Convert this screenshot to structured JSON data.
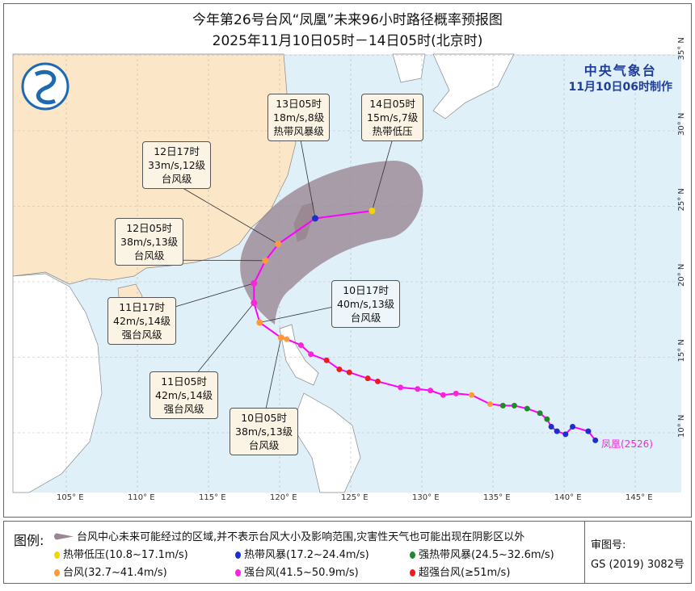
{
  "title": "今年第26号台风“凤凰”未来96小时路径概率预报图",
  "subtitle": "2025年11月10日05时－14日05时(北京时)",
  "agency": {
    "name": "中央气象台",
    "issued": "11月10日06时制作"
  },
  "typhoon_label": "凤凰(2526)",
  "axes": {
    "lon_labels": [
      "105° E",
      "110° E",
      "115° E",
      "120° E",
      "125° E",
      "130° E",
      "135° E",
      "140° E",
      "145° E"
    ],
    "lat_labels": [
      "35° N",
      "30° N",
      "25° N",
      "20° N",
      "15° N",
      "10° N"
    ]
  },
  "colors": {
    "land": "#fbe6c8",
    "sea": "#dff0f9",
    "cone": "#9a8794",
    "track": "#ff00ff",
    "td": "#f2d600",
    "ts": "#1a2fcf",
    "sts": "#1f8a2a",
    "ty": "#ff9a3c",
    "sty": "#ff22dd",
    "superty": "#ee1c1c",
    "river": "#3aa8e8"
  },
  "forecast_points": [
    {
      "time": "10日05时",
      "lon": 120.1,
      "lat": 16.3,
      "wind": "38m/s,13级",
      "level": "台风级",
      "cat": "ty"
    },
    {
      "time": "10日17时",
      "lon": 118.6,
      "lat": 17.3,
      "wind": "40m/s,13级",
      "level": "台风级",
      "cat": "ty"
    },
    {
      "time": "11日05时",
      "lon": 118.2,
      "lat": 18.6,
      "wind": "42m/s,14级",
      "level": "强台风级",
      "cat": "sty"
    },
    {
      "time": "11日17时",
      "lon": 118.2,
      "lat": 19.9,
      "wind": "42m/s,14级",
      "level": "强台风级",
      "cat": "sty"
    },
    {
      "time": "12日05时",
      "lon": 119.0,
      "lat": 21.4,
      "wind": "38m/s,13级",
      "level": "台风级",
      "cat": "ty"
    },
    {
      "time": "12日17时",
      "lon": 119.9,
      "lat": 22.5,
      "wind": "33m/s,12级",
      "level": "台风级",
      "cat": "ty"
    },
    {
      "time": "13日05时",
      "lon": 122.5,
      "lat": 24.2,
      "wind": "18m/s,8级",
      "level": "热带风暴级",
      "cat": "ts"
    },
    {
      "time": "14日05时",
      "lon": 126.5,
      "lat": 24.7,
      "wind": "15m/s,7级",
      "level": "热带低压",
      "cat": "td"
    }
  ],
  "past_track": [
    {
      "lon": 142.2,
      "lat": 9.5,
      "cat": "ts"
    },
    {
      "lon": 141.7,
      "lat": 10.1,
      "cat": "ts"
    },
    {
      "lon": 140.6,
      "lat": 10.4,
      "cat": "ts"
    },
    {
      "lon": 140.1,
      "lat": 9.9,
      "cat": "ts"
    },
    {
      "lon": 139.5,
      "lat": 10.1,
      "cat": "ts"
    },
    {
      "lon": 139.1,
      "lat": 10.4,
      "cat": "ts"
    },
    {
      "lon": 138.8,
      "lat": 10.9,
      "cat": "sts"
    },
    {
      "lon": 138.3,
      "lat": 11.3,
      "cat": "sts"
    },
    {
      "lon": 137.4,
      "lat": 11.6,
      "cat": "sts"
    },
    {
      "lon": 136.5,
      "lat": 11.8,
      "cat": "sts"
    },
    {
      "lon": 135.7,
      "lat": 11.8,
      "cat": "sts"
    },
    {
      "lon": 134.8,
      "lat": 11.9,
      "cat": "ty"
    },
    {
      "lon": 133.5,
      "lat": 12.5,
      "cat": "ty"
    },
    {
      "lon": 132.4,
      "lat": 12.6,
      "cat": "sty"
    },
    {
      "lon": 131.5,
      "lat": 12.5,
      "cat": "sty"
    },
    {
      "lon": 130.6,
      "lat": 12.8,
      "cat": "sty"
    },
    {
      "lon": 129.7,
      "lat": 12.9,
      "cat": "sty"
    },
    {
      "lon": 128.5,
      "lat": 13.0,
      "cat": "sty"
    },
    {
      "lon": 126.9,
      "lat": 13.4,
      "cat": "superty"
    },
    {
      "lon": 126.2,
      "lat": 13.6,
      "cat": "superty"
    },
    {
      "lon": 124.9,
      "lat": 14.0,
      "cat": "superty"
    },
    {
      "lon": 124.2,
      "lat": 14.2,
      "cat": "superty"
    },
    {
      "lon": 123.3,
      "lat": 14.8,
      "cat": "superty"
    },
    {
      "lon": 122.2,
      "lat": 15.2,
      "cat": "sty"
    },
    {
      "lon": 121.5,
      "lat": 15.8,
      "cat": "sty"
    },
    {
      "lon": 120.5,
      "lat": 16.2,
      "cat": "ty"
    }
  ],
  "legend": {
    "title": "图例:",
    "cone": "台风中心未来可能经过的区域,并不表示台风大小及影响范围,灾害性天气也可能出现在阴影区以外",
    "items": [
      {
        "label": "热带低压(10.8~17.1m/s)",
        "cat": "td"
      },
      {
        "label": "热带风暴(17.2~24.4m/s)",
        "cat": "ts"
      },
      {
        "label": "强热带风暴(24.5~32.6m/s)",
        "cat": "sts"
      },
      {
        "label": "台风(32.7~41.4m/s)",
        "cat": "ty"
      },
      {
        "label": "强台风(41.5~50.9m/s)",
        "cat": "sty"
      },
      {
        "label": "超强台风(≥51m/s)",
        "cat": "superty"
      }
    ],
    "review_label": "审图号:",
    "review_no": "GS (2019) 3082号"
  }
}
